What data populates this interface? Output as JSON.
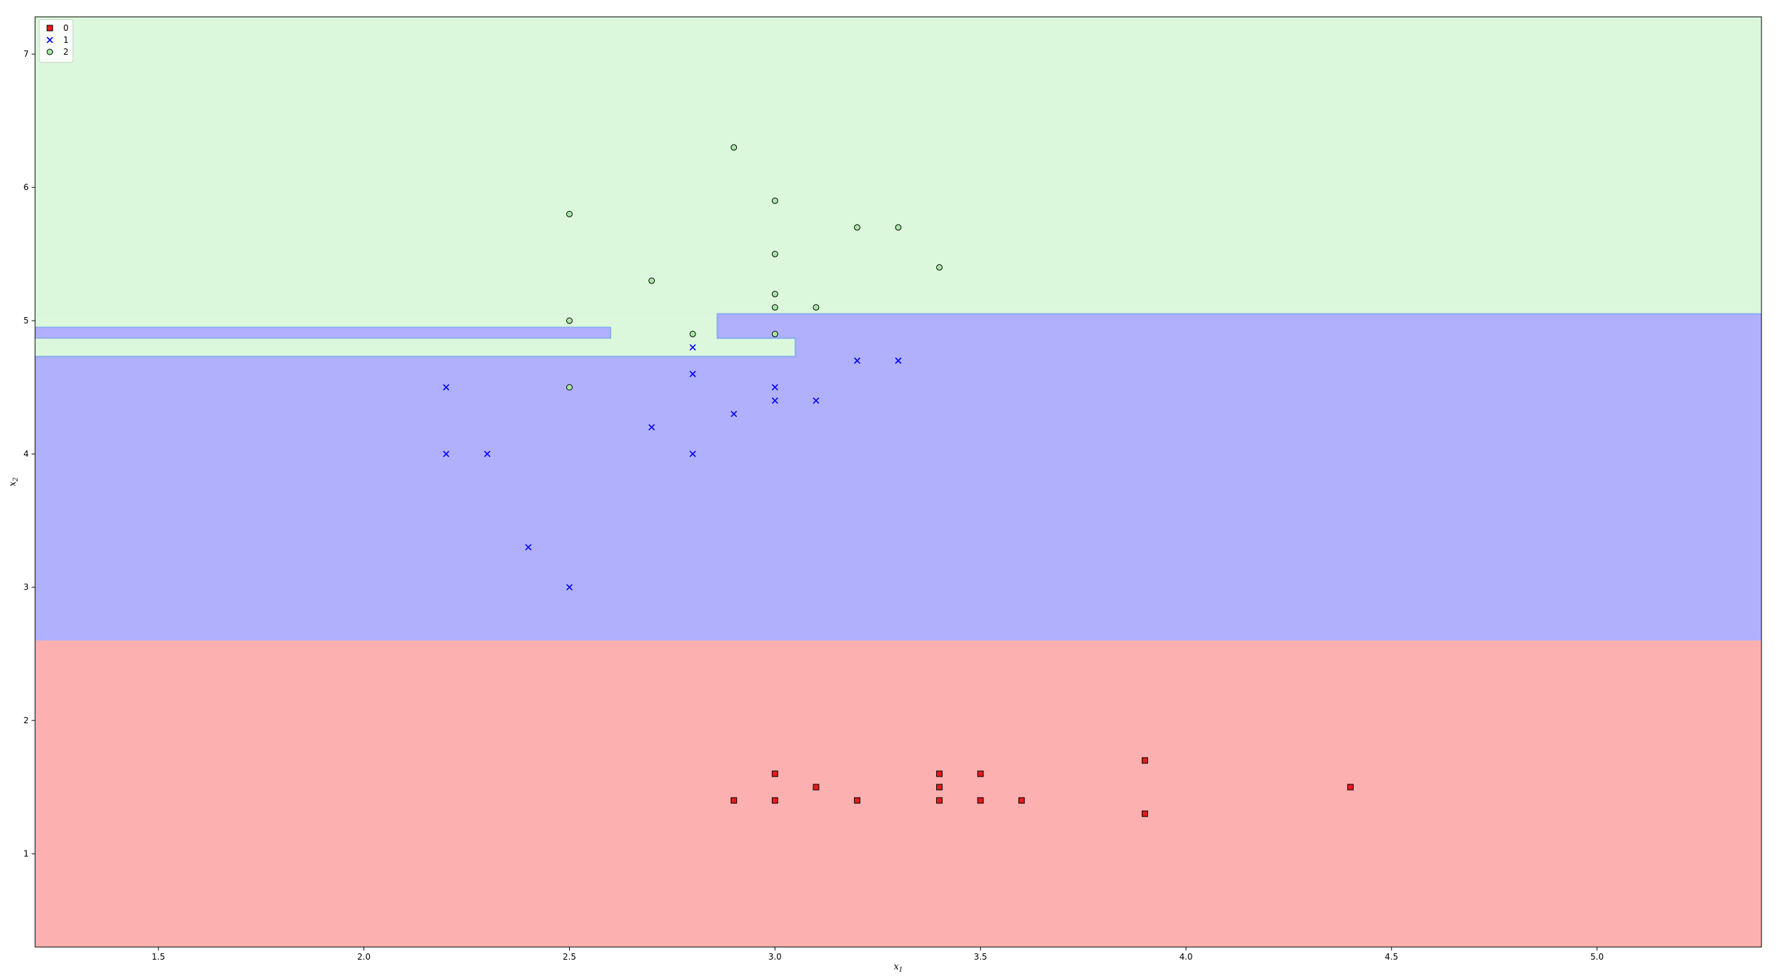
{
  "chart_data": {
    "type": "scatter",
    "title": "",
    "xlabel": "x",
    "xlabel_sub": "1",
    "ylabel": "x",
    "ylabel_sub": "2",
    "xlim": [
      1.2,
      5.4
    ],
    "ylim": [
      0.3,
      7.28
    ],
    "x_ticks": [
      1.5,
      2.0,
      2.5,
      3.0,
      3.5,
      4.0,
      4.5,
      5.0
    ],
    "y_ticks": [
      1,
      2,
      3,
      4,
      5,
      6,
      7
    ],
    "grid": false,
    "legend": {
      "placement": "top-left",
      "entries": [
        "0",
        "1",
        "2"
      ]
    },
    "regions": [
      {
        "class": "0",
        "color": "#fdb0b0",
        "description": "x2 below 2.6"
      },
      {
        "class": "1",
        "color": "#b0b0fd",
        "description": "2.6 to ~5.05"
      },
      {
        "class": "2",
        "color": "#dcf8dc",
        "description": "above ~5.05"
      }
    ],
    "boundary_color": "#8fb0f0",
    "series": [
      {
        "name": "0",
        "marker": "square",
        "face_color": "#e41a1c",
        "edge_color": "#000000",
        "points": [
          [
            2.9,
            1.4
          ],
          [
            3.0,
            1.6
          ],
          [
            3.0,
            1.4
          ],
          [
            3.1,
            1.5
          ],
          [
            3.2,
            1.4
          ],
          [
            3.4,
            1.6
          ],
          [
            3.4,
            1.5
          ],
          [
            3.4,
            1.4
          ],
          [
            3.5,
            1.6
          ],
          [
            3.5,
            1.4
          ],
          [
            3.6,
            1.4
          ],
          [
            3.9,
            1.7
          ],
          [
            3.9,
            1.3
          ],
          [
            4.4,
            1.5
          ]
        ]
      },
      {
        "name": "1",
        "marker": "x",
        "face_color": "#0000ff",
        "edge_color": "#0000ff",
        "points": [
          [
            2.2,
            4.5
          ],
          [
            2.2,
            4.0
          ],
          [
            2.3,
            4.0
          ],
          [
            2.4,
            3.3
          ],
          [
            2.5,
            3.0
          ],
          [
            2.7,
            4.2
          ],
          [
            2.8,
            4.8
          ],
          [
            2.8,
            4.6
          ],
          [
            2.8,
            4.0
          ],
          [
            2.9,
            4.3
          ],
          [
            3.0,
            4.5
          ],
          [
            3.0,
            4.4
          ],
          [
            3.1,
            4.4
          ],
          [
            3.2,
            4.7
          ],
          [
            3.3,
            4.7
          ]
        ]
      },
      {
        "name": "2",
        "marker": "circle",
        "face_color": "#a8e6a8",
        "edge_color": "#000000",
        "points": [
          [
            2.5,
            5.8
          ],
          [
            2.5,
            5.0
          ],
          [
            2.5,
            4.5
          ],
          [
            2.7,
            5.3
          ],
          [
            2.8,
            4.9
          ],
          [
            2.9,
            6.3
          ],
          [
            3.0,
            5.9
          ],
          [
            3.0,
            5.5
          ],
          [
            3.0,
            5.2
          ],
          [
            3.0,
            5.1
          ],
          [
            3.0,
            4.9
          ],
          [
            3.1,
            5.1
          ],
          [
            3.2,
            5.7
          ],
          [
            3.3,
            5.7
          ],
          [
            3.4,
            5.4
          ]
        ]
      }
    ]
  }
}
